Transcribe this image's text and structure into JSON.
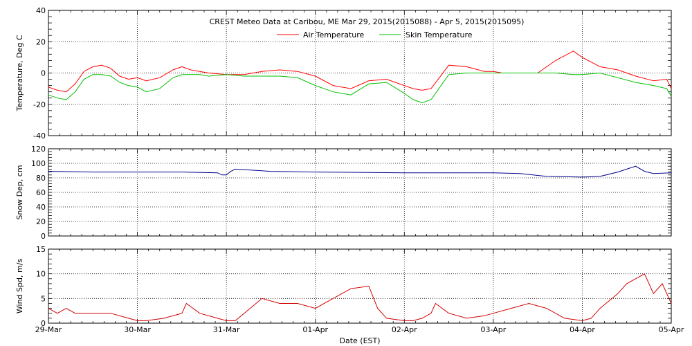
{
  "title": "CREST Meteo Data at Caribou, ME   Mar 29, 2015(2015088) - Apr  5, 2015(2015095)",
  "xlabel": "Date (EST)",
  "x_ticks": [
    "29-Mar",
    "30-Mar",
    "31-Mar",
    "01-Apr",
    "02-Apr",
    "03-Apr",
    "04-Apr",
    "05-Apr"
  ],
  "colors": {
    "air": "#ff0000",
    "skin": "#00c000",
    "snow": "#00008b",
    "wind": "#d00000",
    "grid": "#000000"
  },
  "chart_data": [
    {
      "type": "line",
      "ylabel": "Temperature, Deg C",
      "ylim": [
        -40,
        40
      ],
      "yticks": [
        -40,
        -20,
        0,
        20,
        40
      ],
      "x_unit": "days since 29-Mar 00:00",
      "series": [
        {
          "name": "Air Temperature",
          "color": "#ff0000",
          "x": [
            0,
            0.1,
            0.2,
            0.3,
            0.4,
            0.5,
            0.6,
            0.7,
            0.8,
            0.9,
            1.0,
            1.1,
            1.25,
            1.4,
            1.5,
            1.6,
            1.7,
            1.8,
            2.0,
            2.2,
            2.4,
            2.6,
            2.8,
            3.0,
            3.2,
            3.4,
            3.6,
            3.8,
            4.0,
            4.1,
            4.2,
            4.3,
            4.5,
            4.7,
            4.9,
            5.0,
            5.1,
            5.3,
            5.5,
            5.7,
            5.9,
            6.0,
            6.2,
            6.4,
            6.6,
            6.8,
            6.95,
            7.0
          ],
          "y": [
            -9,
            -11,
            -12,
            -7,
            1,
            4,
            5,
            3,
            -2,
            -4,
            -3,
            -5,
            -3,
            2,
            4,
            2,
            1,
            0,
            -1,
            -1,
            1,
            2,
            1,
            -2,
            -8,
            -10,
            -5,
            -4,
            -8,
            -10,
            -11,
            -10,
            5,
            4,
            1,
            1,
            0,
            0,
            0,
            8,
            14,
            10,
            4,
            2,
            -2,
            -5,
            -4,
            -10
          ]
        },
        {
          "name": "Skin Temperature",
          "color": "#00c000",
          "x": [
            0,
            0.1,
            0.2,
            0.3,
            0.4,
            0.5,
            0.6,
            0.7,
            0.8,
            0.9,
            1.0,
            1.1,
            1.25,
            1.4,
            1.5,
            1.6,
            1.7,
            1.8,
            2.0,
            2.2,
            2.4,
            2.6,
            2.8,
            3.0,
            3.2,
            3.4,
            3.6,
            3.8,
            4.0,
            4.1,
            4.2,
            4.3,
            4.5,
            4.7,
            4.9,
            5.0,
            5.1,
            5.3,
            5.5,
            5.7,
            5.9,
            6.0,
            6.2,
            6.4,
            6.6,
            6.8,
            6.95,
            7.0
          ],
          "y": [
            -14,
            -16,
            -17,
            -12,
            -4,
            -1,
            -1,
            -2,
            -6,
            -8,
            -9,
            -12,
            -10,
            -3,
            -1,
            -1,
            -1,
            -2,
            -1,
            -2,
            -2,
            -2,
            -3,
            -8,
            -12,
            -14,
            -7,
            -6,
            -13,
            -17,
            -19,
            -17,
            -1,
            0,
            0,
            0,
            0,
            0,
            0,
            0,
            -1,
            -1,
            0,
            -3,
            -6,
            -8,
            -10,
            -15
          ]
        }
      ]
    },
    {
      "type": "line",
      "ylabel": "Snow Dep, cm",
      "ylim": [
        0,
        120
      ],
      "yticks": [
        0,
        20,
        40,
        60,
        80,
        100,
        120
      ],
      "x_unit": "days since 29-Mar 00:00",
      "series": [
        {
          "name": "Snow Depth",
          "color": "#00008b",
          "x": [
            0,
            0.5,
            1.0,
            1.5,
            1.9,
            1.95,
            2.0,
            2.05,
            2.1,
            2.5,
            3.0,
            4.0,
            5.0,
            5.3,
            5.6,
            6.0,
            6.2,
            6.4,
            6.5,
            6.6,
            6.7,
            6.8,
            7.0
          ],
          "y": [
            89,
            88,
            88,
            88,
            87,
            84,
            84,
            89,
            92,
            89,
            88,
            87,
            87,
            86,
            82,
            81,
            82,
            88,
            92,
            96,
            89,
            86,
            87
          ]
        }
      ]
    },
    {
      "type": "line",
      "ylabel": "Wind Spd, m/s",
      "ylim": [
        0,
        15
      ],
      "yticks": [
        0,
        5,
        10,
        15
      ],
      "x_unit": "days since 29-Mar 00:00",
      "series": [
        {
          "name": "Wind Speed",
          "color": "#d00000",
          "x": [
            0,
            0.1,
            0.2,
            0.3,
            0.5,
            0.7,
            0.9,
            1.0,
            1.1,
            1.3,
            1.5,
            1.55,
            1.7,
            1.9,
            2.0,
            2.1,
            2.2,
            2.4,
            2.6,
            2.8,
            3.0,
            3.2,
            3.4,
            3.6,
            3.7,
            3.8,
            4.0,
            4.1,
            4.2,
            4.3,
            4.35,
            4.5,
            4.7,
            4.9,
            5.0,
            5.2,
            5.4,
            5.6,
            5.8,
            6.0,
            6.1,
            6.2,
            6.4,
            6.5,
            6.6,
            6.7,
            6.8,
            6.9,
            7.0
          ],
          "y": [
            3,
            2,
            3,
            2,
            2,
            2,
            1,
            0.5,
            0.5,
            1,
            2,
            4,
            2,
            1,
            0.5,
            0.5,
            2,
            5,
            4,
            4,
            3,
            5,
            7,
            7.5,
            3,
            1,
            0.5,
            0.5,
            1,
            2,
            4,
            2,
            1,
            1.5,
            2,
            3,
            4,
            3,
            1,
            0.5,
            1,
            3,
            6,
            8,
            9,
            10,
            6,
            8,
            4
          ]
        }
      ]
    }
  ]
}
